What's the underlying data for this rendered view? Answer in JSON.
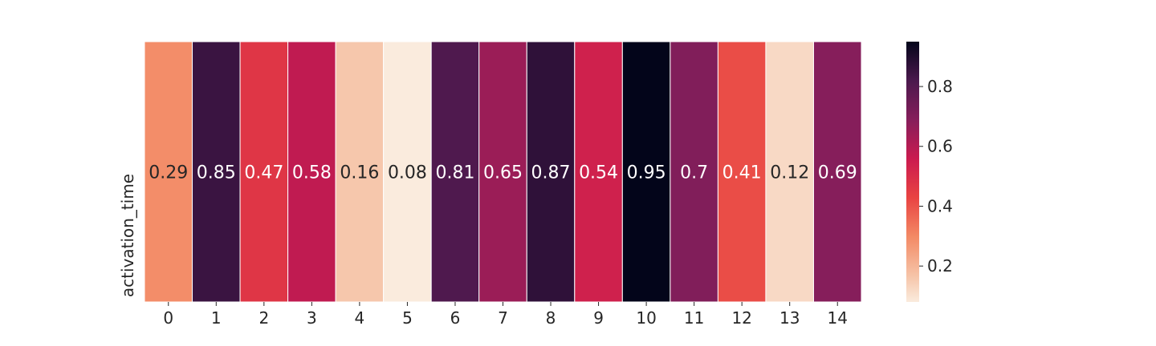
{
  "chart_data": {
    "type": "heatmap",
    "title": "",
    "xlabel": "",
    "ylabel": "activation_time",
    "x": [
      "0",
      "1",
      "2",
      "3",
      "4",
      "5",
      "6",
      "7",
      "8",
      "9",
      "10",
      "11",
      "12",
      "13",
      "14"
    ],
    "rows": [
      "activation_time"
    ],
    "values": [
      [
        0.29,
        0.85,
        0.47,
        0.58,
        0.16,
        0.08,
        0.81,
        0.65,
        0.87,
        0.54,
        0.95,
        0.7,
        0.41,
        0.12,
        0.69
      ]
    ],
    "value_labels": [
      "0.29",
      "0.85",
      "0.47",
      "0.58",
      "0.16",
      "0.08",
      "0.81",
      "0.65",
      "0.87",
      "0.54",
      "0.95",
      "0.7",
      "0.41",
      "0.12",
      "0.69"
    ],
    "colormap": "rocket_r",
    "vmin": 0.08,
    "vmax": 0.95,
    "colorbar_ticks": [
      "0.2",
      "0.4",
      "0.6",
      "0.8"
    ],
    "colorbar_tick_values": [
      0.2,
      0.4,
      0.6,
      0.8
    ],
    "cell_border_color": "#ffffff",
    "grid": false,
    "legend": "colorbar-right"
  }
}
